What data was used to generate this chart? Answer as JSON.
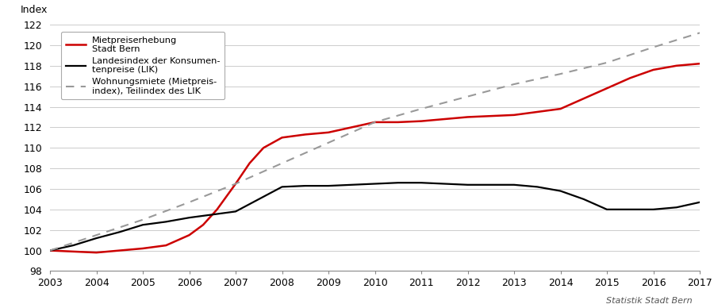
{
  "ylabel": "Index",
  "ylabel_fontsize": 9,
  "xlim": [
    2003,
    2017
  ],
  "ylim": [
    98,
    122
  ],
  "yticks": [
    98,
    100,
    102,
    104,
    106,
    108,
    110,
    112,
    114,
    116,
    118,
    120,
    122
  ],
  "xticks": [
    2003,
    2004,
    2005,
    2006,
    2007,
    2008,
    2009,
    2010,
    2011,
    2012,
    2013,
    2014,
    2015,
    2016,
    2017
  ],
  "background_color": "#ffffff",
  "grid_color": "#cccccc",
  "source_text": "Statistik Stadt Bern",
  "red_line": {
    "label": "Mietpreiserhebung\nStadt Bern",
    "color": "#cc0000",
    "linewidth": 1.8,
    "x": [
      2003,
      2003.5,
      2004,
      2004.5,
      2005,
      2005.5,
      2006,
      2006.3,
      2006.6,
      2007,
      2007.3,
      2007.6,
      2008,
      2008.5,
      2009,
      2009.5,
      2010,
      2010.5,
      2011,
      2011.5,
      2012,
      2012.5,
      2013,
      2013.5,
      2014,
      2014.5,
      2015,
      2015.5,
      2016,
      2016.5,
      2017
    ],
    "y": [
      100.0,
      99.9,
      99.8,
      100.0,
      100.2,
      100.5,
      101.5,
      102.5,
      104.0,
      106.5,
      108.5,
      110.0,
      111.0,
      111.3,
      111.5,
      112.0,
      112.5,
      112.5,
      112.6,
      112.8,
      113.0,
      113.1,
      113.2,
      113.5,
      113.8,
      114.8,
      115.8,
      116.8,
      117.6,
      118.0,
      118.2
    ]
  },
  "black_line": {
    "label": "Landesindex der Konsumen-\ntenpreise (LIK)",
    "color": "#000000",
    "linewidth": 1.6,
    "x": [
      2003,
      2003.5,
      2004,
      2004.5,
      2005,
      2005.5,
      2006,
      2006.5,
      2007,
      2007.5,
      2008,
      2008.5,
      2009,
      2009.5,
      2010,
      2010.5,
      2011,
      2011.5,
      2012,
      2012.5,
      2013,
      2013.5,
      2014,
      2014.5,
      2015,
      2015.5,
      2016,
      2016.5,
      2017
    ],
    "y": [
      100.0,
      100.5,
      101.2,
      101.8,
      102.5,
      102.8,
      103.2,
      103.5,
      103.8,
      105.0,
      106.2,
      106.3,
      106.3,
      106.4,
      106.5,
      106.6,
      106.6,
      106.5,
      106.4,
      106.4,
      106.4,
      106.2,
      105.8,
      105.0,
      104.0,
      104.0,
      104.0,
      104.2,
      104.7
    ]
  },
  "dashed_line": {
    "label": "Wohnungsmiete (Mietpreis-\nindex), Teilindex des LIK",
    "color": "#999999",
    "linewidth": 1.5,
    "linestyle": "--",
    "x": [
      2003,
      2004,
      2005,
      2006,
      2007,
      2008,
      2009,
      2010,
      2011,
      2012,
      2013,
      2014,
      2015,
      2016,
      2017
    ],
    "y": [
      100.0,
      101.5,
      103.0,
      104.7,
      106.5,
      108.5,
      110.5,
      112.5,
      113.8,
      115.0,
      116.2,
      117.2,
      118.3,
      119.8,
      121.2
    ]
  }
}
